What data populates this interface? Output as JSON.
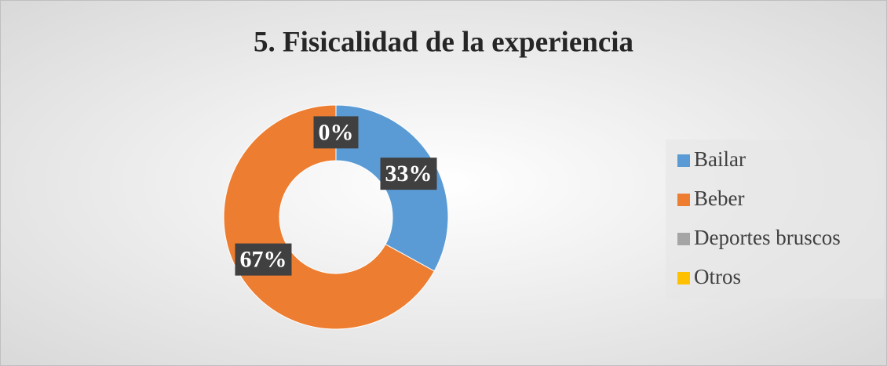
{
  "chart_data": {
    "type": "donut",
    "title": "5. Fisicalidad de la experiencia",
    "categories": [
      "Bailar",
      "Beber",
      "Deportes bruscos",
      "Otros"
    ],
    "values": [
      33,
      67,
      0,
      0
    ],
    "value_labels": [
      "33%",
      "67%",
      "0%",
      null
    ],
    "colors": [
      "#5b9bd5",
      "#ed7d31",
      "#a5a5a5",
      "#ffc000"
    ],
    "legend": "right"
  }
}
